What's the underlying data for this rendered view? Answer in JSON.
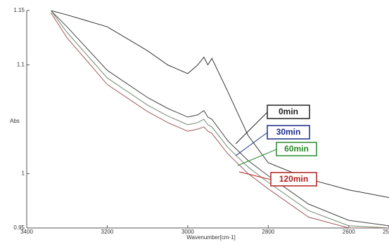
{
  "chart_data": {
    "type": "line",
    "x_label": "Wavenumber[cm-1]",
    "y_label": "Abs",
    "x": [
      3340,
      3300,
      3200,
      3100,
      3050,
      3000,
      2975,
      2960,
      2950,
      2940,
      2900,
      2850,
      2800,
      2700,
      2600,
      2500
    ],
    "series": [
      {
        "name": "0min",
        "color": "#333333",
        "box_color": "#222222",
        "values": [
          1.15,
          1.146,
          1.135,
          1.113,
          1.1,
          1.092,
          1.1,
          1.107,
          1.1,
          1.106,
          1.075,
          1.035,
          1.01,
          0.995,
          0.985,
          0.978
        ]
      },
      {
        "name": "30min",
        "color": "#444444",
        "box_color": "#1a2a8a",
        "values": [
          1.15,
          1.135,
          1.095,
          1.07,
          1.06,
          1.052,
          1.054,
          1.058,
          1.052,
          1.05,
          1.03,
          1.012,
          0.998,
          0.972,
          0.957,
          0.952
        ]
      },
      {
        "name": "60min",
        "color": "#6f8a6f",
        "box_color": "#2a8a2a",
        "values": [
          1.15,
          1.13,
          1.088,
          1.063,
          1.053,
          1.045,
          1.047,
          1.05,
          1.045,
          1.043,
          1.024,
          1.006,
          0.992,
          0.966,
          0.952,
          0.95
        ]
      },
      {
        "name": "120min",
        "color": "#a05a5a",
        "box_color": "#b02020",
        "values": [
          1.148,
          1.125,
          1.082,
          1.057,
          1.047,
          1.039,
          1.041,
          1.043,
          1.039,
          1.037,
          1.018,
          1.0,
          0.986,
          0.96,
          0.95,
          0.95
        ]
      }
    ],
    "xlim": [
      3400,
      2500
    ],
    "xticks": [
      3400,
      3200,
      3000,
      2800,
      2600,
      2500
    ],
    "ylim": [
      0.95,
      1.15
    ],
    "yticks": [
      0.95,
      1,
      1.1,
      1.15
    ]
  }
}
